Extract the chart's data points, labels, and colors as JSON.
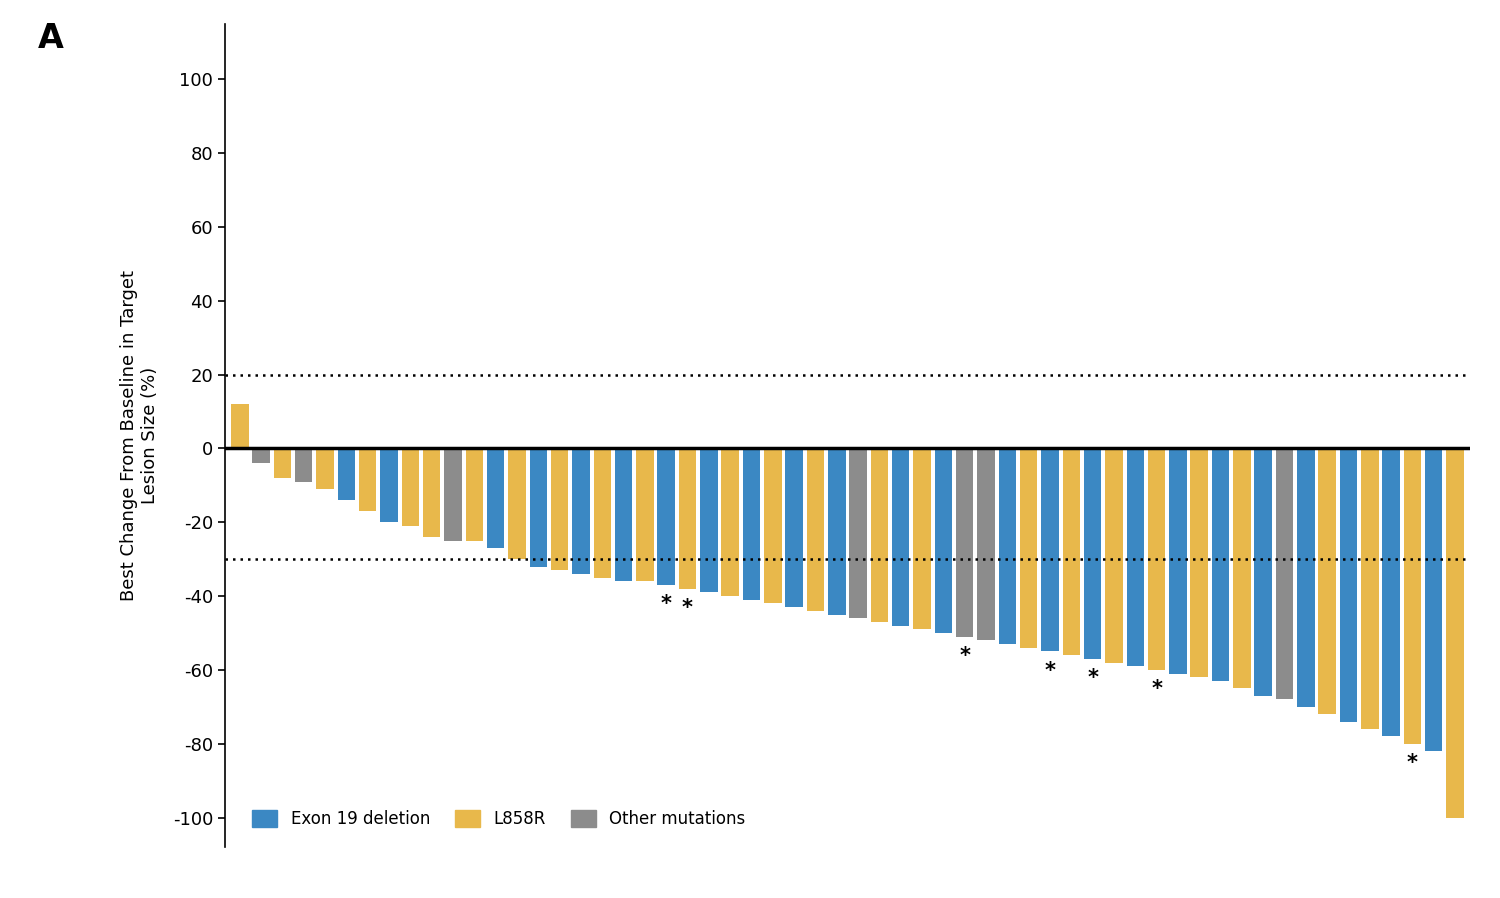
{
  "ylabel": "Best Change From Baseline in Target\nLesion Size (%)",
  "ylim": [
    -108,
    115
  ],
  "yticks": [
    -100,
    -80,
    -60,
    -40,
    -20,
    0,
    20,
    40,
    60,
    80,
    100
  ],
  "hline_zero": 0,
  "hline_dotted_upper": 20,
  "hline_dotted_lower": -30,
  "color_blue": "#3B88C3",
  "color_yellow": "#E8B84B",
  "color_gray": "#8C8C8C",
  "legend_labels": [
    "Exon 19 deletion",
    "L858R",
    "Other mutations"
  ],
  "values": [
    12,
    -4,
    -8,
    -9,
    -11,
    -14,
    -17,
    -20,
    -21,
    -24,
    -25,
    -25,
    -27,
    -30,
    -32,
    -33,
    -34,
    -35,
    -36,
    -36,
    -37,
    -38,
    -39,
    -40,
    -41,
    -42,
    -43,
    -44,
    -45,
    -46,
    -47,
    -48,
    -49,
    -50,
    -51,
    -52,
    -53,
    -54,
    -55,
    -56,
    -57,
    -58,
    -59,
    -60,
    -61,
    -62,
    -63,
    -65,
    -67,
    -68,
    -70,
    -72,
    -74,
    -76,
    -78,
    -80,
    -82,
    -100
  ],
  "colors": [
    "Y",
    "G",
    "Y",
    "G",
    "Y",
    "B",
    "Y",
    "B",
    "Y",
    "Y",
    "G",
    "Y",
    "B",
    "Y",
    "B",
    "Y",
    "B",
    "Y",
    "B",
    "Y",
    "B",
    "Y",
    "B",
    "Y",
    "B",
    "Y",
    "B",
    "Y",
    "B",
    "G",
    "Y",
    "B",
    "Y",
    "B",
    "G",
    "G",
    "B",
    "Y",
    "B",
    "Y",
    "B",
    "Y",
    "B",
    "Y",
    "B",
    "Y",
    "B",
    "Y",
    "B",
    "G",
    "B",
    "Y",
    "B",
    "Y",
    "B",
    "Y",
    "B",
    "Y"
  ],
  "asterisk_indices": [
    20,
    21,
    34,
    38,
    40,
    43,
    55
  ],
  "background_color": "#FFFFFF",
  "bar_width": 0.82,
  "figsize": [
    15.0,
    8.98
  ],
  "dpi": 100
}
